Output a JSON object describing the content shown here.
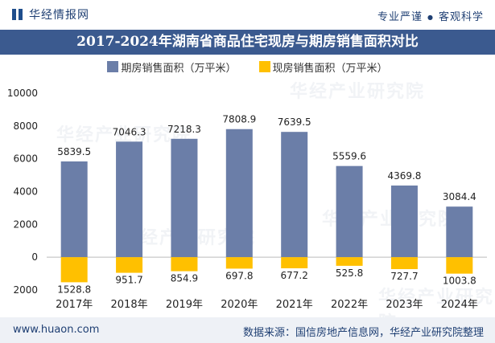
{
  "header": {
    "logo_text": "华经情报网",
    "slogan_left": "专业严谨",
    "slogan_sep": "●",
    "slogan_right": "客观科学"
  },
  "colors": {
    "primary_series": "#6b7ea8",
    "secondary_series": "#ffc000",
    "title_bar": "#3b5a8f"
  },
  "watermark": "华经产业研究院",
  "chart_data": {
    "type": "bar",
    "title": "2017-2024年湖南省商品住宅现房与期房销售面积对比",
    "categories": [
      "2017年",
      "2018年",
      "2019年",
      "2020年",
      "2021年",
      "2022年",
      "2023年",
      "2024年"
    ],
    "series": [
      {
        "name": "期房销售面积（万平米）",
        "values": [
          5839.5,
          7046.3,
          7218.3,
          7808.9,
          7639.5,
          5559.6,
          4369.8,
          3084.4
        ],
        "direction": "positive"
      },
      {
        "name": "现房销售面积（万平米）",
        "values": [
          1528.8,
          951.7,
          854.9,
          697.8,
          677.2,
          525.8,
          727.7,
          1003.8
        ],
        "direction": "negative"
      }
    ],
    "ylim": [
      -2000,
      10000
    ],
    "yticks": [
      -2000,
      0,
      2000,
      4000,
      6000,
      8000,
      10000
    ],
    "ytick_labels": [
      "2000",
      "0",
      "2000",
      "4000",
      "6000",
      "8000",
      "10000"
    ],
    "xlabel": "",
    "ylabel": "",
    "grid": false,
    "legend_position": "top-center"
  },
  "footer": {
    "website": "www.huaon.com",
    "source": "数据来源：国信房地产信息网，华经产业研究院整理"
  }
}
